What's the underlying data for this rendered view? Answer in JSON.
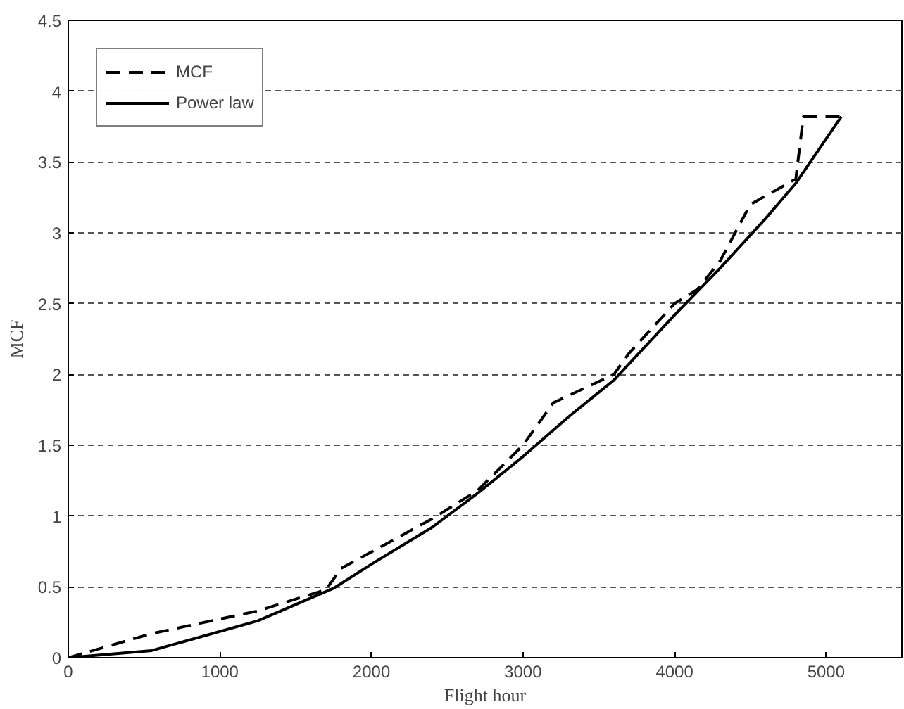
{
  "chart_data": {
    "type": "line",
    "xlabel": "Flight hour",
    "ylabel": "MCF",
    "xlim": [
      0,
      5500
    ],
    "xticks": [
      0,
      1000,
      2000,
      3000,
      4000,
      5000
    ],
    "ylim": [
      0,
      4.5
    ],
    "yticks": [
      0,
      0.5,
      1,
      1.5,
      2,
      2.5,
      3,
      3.5,
      4,
      4.5
    ],
    "grid": "y",
    "legend": "top left",
    "marker": "none",
    "series": [
      {
        "name": "MCF",
        "color": "#000000",
        "line_style": "dashed",
        "x": [
          0,
          550,
          1250,
          1700,
          1800,
          2400,
          2700,
          3000,
          3200,
          3600,
          3700,
          4000,
          4150,
          4300,
          4500,
          4800,
          4850,
          5100
        ],
        "values": [
          0,
          0.17,
          0.33,
          0.48,
          0.63,
          0.98,
          1.18,
          1.5,
          1.8,
          2.0,
          2.15,
          2.5,
          2.6,
          2.8,
          3.2,
          3.38,
          3.82,
          3.82
        ]
      },
      {
        "name": "Power law",
        "color": "#000000",
        "line_style": "solid",
        "x": [
          0,
          550,
          1250,
          1750,
          2000,
          2400,
          2700,
          3000,
          3300,
          3600,
          4000,
          4300,
          4600,
          4800,
          5100
        ],
        "values": [
          0,
          0.05,
          0.26,
          0.49,
          0.66,
          0.92,
          1.16,
          1.42,
          1.7,
          1.96,
          2.42,
          2.75,
          3.1,
          3.35,
          3.82
        ]
      }
    ]
  }
}
